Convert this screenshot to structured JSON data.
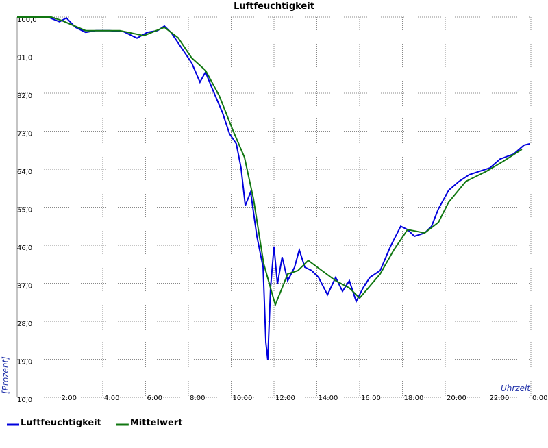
{
  "chart_data": {
    "type": "line",
    "title": "Luftfeuchtigkeit",
    "ylabel": "[Prozent]",
    "xlabel": "Uhrzeit",
    "xlim": [
      0,
      24
    ],
    "ylim": [
      10,
      100
    ],
    "grid": true,
    "legend": "bottom-left",
    "xticks": [
      {
        "value": 2,
        "label": "2:00"
      },
      {
        "value": 4,
        "label": "4:00"
      },
      {
        "value": 6,
        "label": "6:00"
      },
      {
        "value": 8,
        "label": "8:00"
      },
      {
        "value": 10,
        "label": "10:00"
      },
      {
        "value": 12,
        "label": "12:00"
      },
      {
        "value": 14,
        "label": "14:00"
      },
      {
        "value": 16,
        "label": "16:00"
      },
      {
        "value": 18,
        "label": "18:00"
      },
      {
        "value": 20,
        "label": "20:00"
      },
      {
        "value": 22,
        "label": "22:00"
      },
      {
        "value": 24,
        "label": "0:00"
      }
    ],
    "yticks": [
      {
        "value": 10,
        "label": "10,0"
      },
      {
        "value": 19,
        "label": "19,0"
      },
      {
        "value": 28,
        "label": "28,0"
      },
      {
        "value": 37,
        "label": "37,0"
      },
      {
        "value": 46,
        "label": "46,0"
      },
      {
        "value": 55,
        "label": "55,0"
      },
      {
        "value": 64,
        "label": "64,0"
      },
      {
        "value": 73,
        "label": "73,0"
      },
      {
        "value": 82,
        "label": "82,0"
      },
      {
        "value": 91,
        "label": "91,0"
      },
      {
        "value": 100,
        "label": "100,0"
      }
    ],
    "series": [
      {
        "name": "Luftfeuchtigkeit",
        "color": "#0000dd",
        "x": [
          0,
          1.44,
          1.98,
          2.3,
          2.72,
          3.2,
          3.68,
          4.32,
          4.96,
          5.6,
          6.08,
          6.56,
          6.88,
          7.2,
          7.68,
          8.16,
          8.54,
          8.8,
          9.12,
          9.6,
          9.92,
          10.24,
          10.46,
          10.66,
          10.91,
          11.2,
          11.49,
          11.62,
          11.71,
          11.84,
          12,
          12.16,
          12.38,
          12.64,
          12.96,
          13.18,
          13.44,
          13.76,
          14.08,
          14.5,
          14.88,
          15.2,
          15.52,
          15.84,
          16.16,
          16.48,
          16.96,
          17.44,
          17.92,
          18.24,
          18.56,
          19.04,
          19.36,
          19.68,
          20.16,
          20.64,
          21.12,
          21.6,
          22.08,
          22.56,
          23.2,
          23.68,
          23.94
        ],
        "values": [
          100,
          100,
          98.9,
          99.8,
          97.6,
          96.4,
          96.8,
          96.8,
          96.6,
          95,
          96.4,
          96.8,
          97.9,
          96.3,
          92.7,
          89.1,
          84.6,
          87,
          83,
          77.3,
          72.4,
          70,
          64.3,
          55.4,
          58.6,
          48.1,
          40.8,
          23,
          18.9,
          36,
          45.7,
          36.8,
          43.2,
          37.6,
          40.8,
          44.9,
          40.8,
          40,
          38.4,
          34.3,
          38.4,
          35.1,
          37.6,
          32.7,
          35.9,
          38.4,
          40,
          45.7,
          50.5,
          49.7,
          48.1,
          48.9,
          50.5,
          54.6,
          59,
          61.1,
          62.7,
          63.5,
          64.3,
          66.4,
          67.6,
          69.7,
          70
        ]
      },
      {
        "name": "Mittelwert",
        "color": "#117711",
        "x": [
          0,
          1.6,
          2.08,
          3.2,
          4.8,
          5.92,
          6.88,
          7.52,
          8.16,
          8.8,
          9.44,
          10.08,
          10.62,
          11.04,
          11.52,
          12.06,
          12.64,
          13.12,
          13.6,
          14.24,
          14.88,
          15.52,
          16,
          16.96,
          17.6,
          18.24,
          19.04,
          19.68,
          20.16,
          20.96,
          21.92,
          22.72,
          23.58
        ],
        "values": [
          100,
          100,
          99.2,
          96.8,
          96.8,
          95.6,
          97.6,
          95.1,
          90.3,
          87.4,
          81.4,
          73.2,
          66.8,
          57,
          41.6,
          31.9,
          39.2,
          40,
          42.4,
          40,
          37.6,
          35.9,
          33.5,
          39.2,
          44.9,
          49.7,
          48.9,
          51.4,
          56.2,
          61.1,
          63.5,
          65.9,
          68.7
        ]
      }
    ]
  }
}
